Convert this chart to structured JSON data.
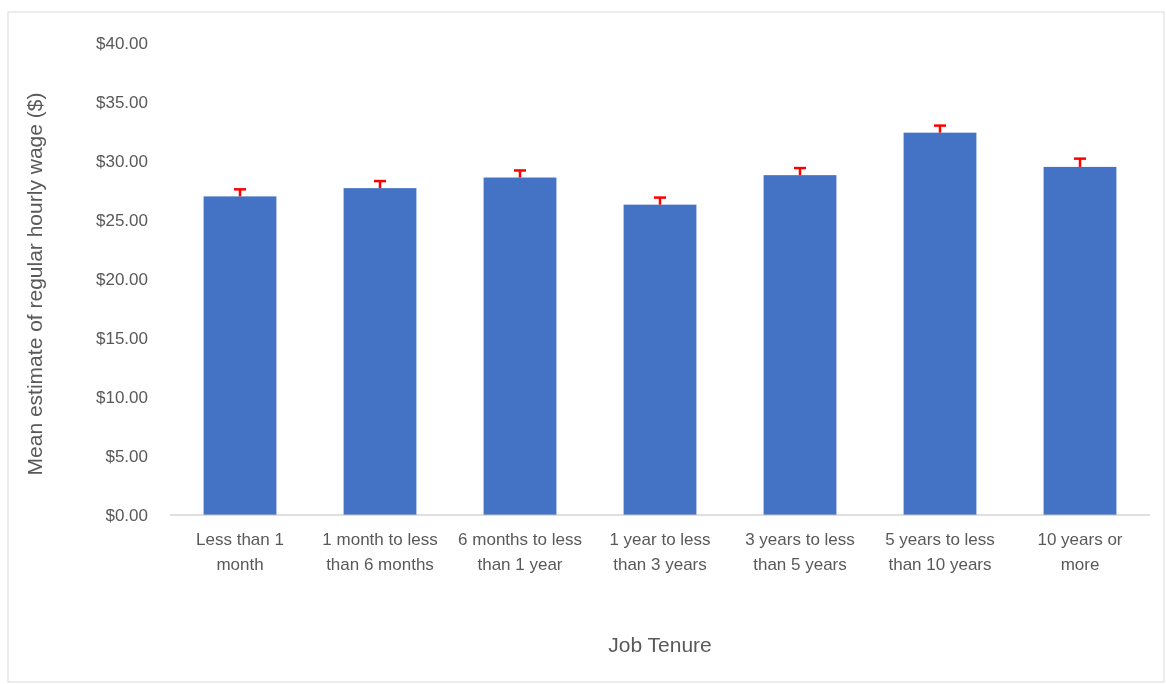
{
  "chart_data": {
    "type": "bar",
    "categories": [
      "Less than 1 month",
      "1 month to less than 6 months",
      "6 months to less than 1 year",
      "1 year to less than 3 years",
      "3 years to less than 5 years",
      "5 years to less than 10 years",
      "10 years or more"
    ],
    "values": [
      27.0,
      27.7,
      28.6,
      26.3,
      28.8,
      32.4,
      29.5
    ],
    "errors": [
      [
        27.0,
        27.6
      ],
      [
        27.7,
        28.3
      ],
      [
        28.6,
        29.2
      ],
      [
        26.3,
        26.9
      ],
      [
        28.8,
        29.4
      ],
      [
        32.4,
        33.0
      ],
      [
        29.5,
        30.2
      ]
    ],
    "color": "#4472c4",
    "xlabel": "Job Tenure",
    "ylabel": "Mean estimate of regular hourly wage ($)",
    "ylim": [
      0,
      40
    ],
    "yticks": [
      {
        "value": 0,
        "label": "$0.00"
      },
      {
        "value": 5,
        "label": "$5.00"
      },
      {
        "value": 10,
        "label": "$10.00"
      },
      {
        "value": 15,
        "label": "$15.00"
      },
      {
        "value": 20,
        "label": "$20.00"
      },
      {
        "value": 25,
        "label": "$25.00"
      },
      {
        "value": 30,
        "label": "$30.00"
      },
      {
        "value": 35,
        "label": "$35.00"
      },
      {
        "value": 40,
        "label": "$40.00"
      }
    ],
    "grid": false
  }
}
